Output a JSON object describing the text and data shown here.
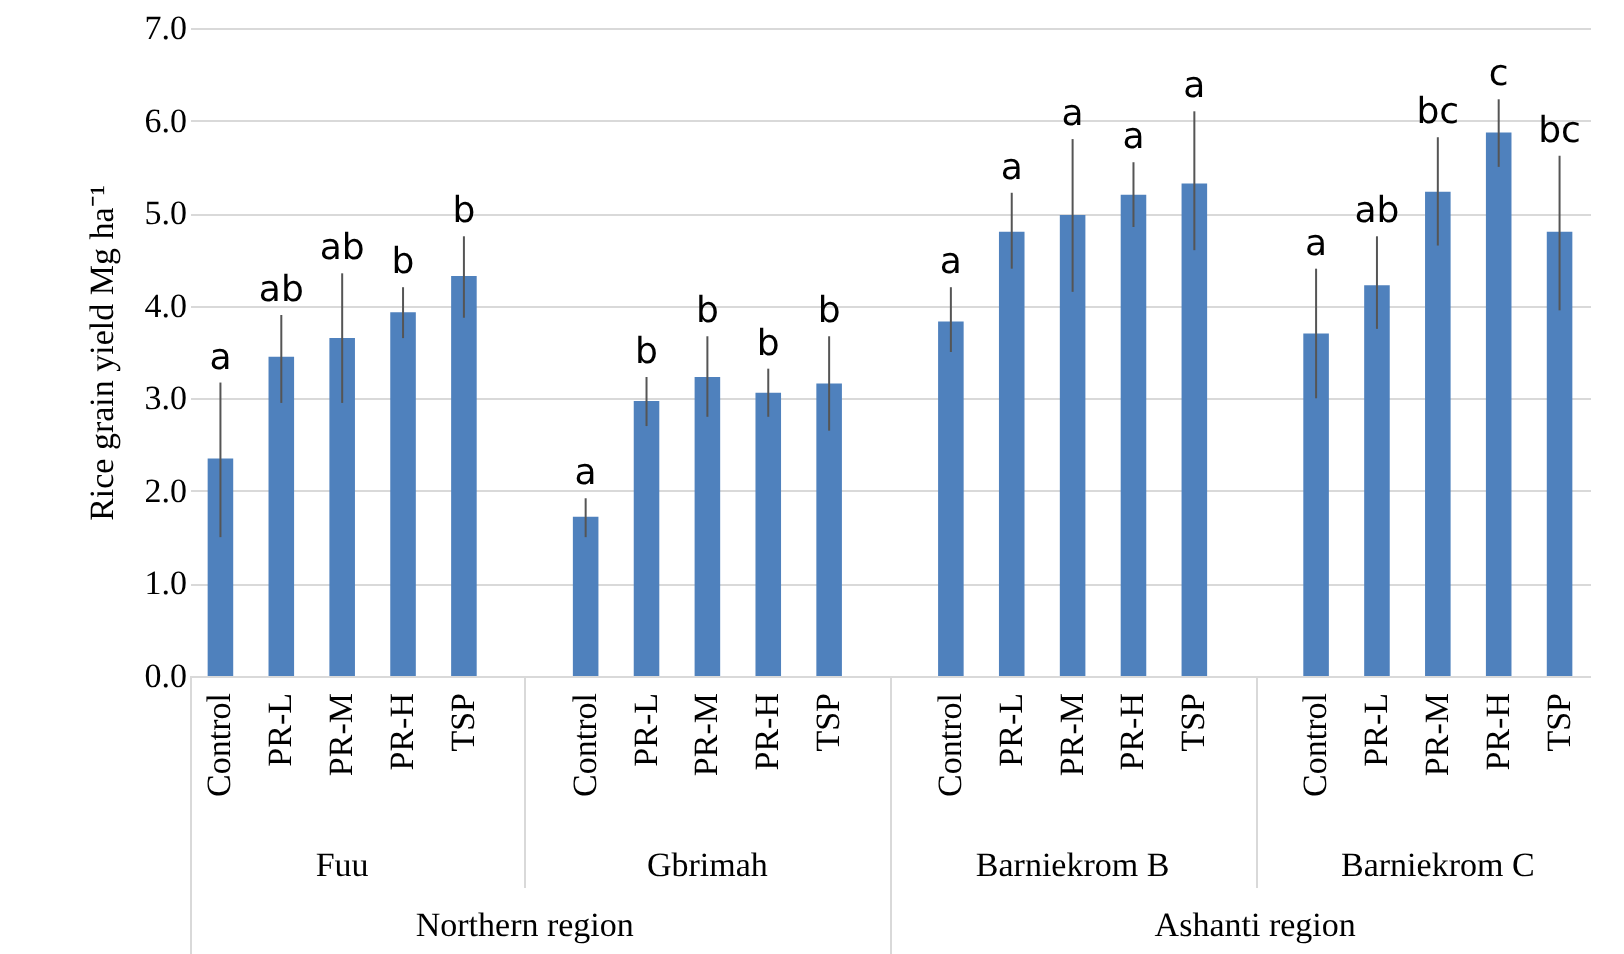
{
  "chart_data": {
    "type": "bar",
    "ylabel": "Rice grain yield  Mg ha⁻¹",
    "categories": [
      "Control",
      "PR-L",
      "PR-M",
      "PR-H",
      "TSP",
      null,
      "Control",
      "PR-L",
      "PR-M",
      "PR-H",
      "TSP",
      null,
      "Control",
      "PR-L",
      "PR-M",
      "PR-H",
      "TSP",
      null,
      "Control",
      "PR-L",
      "PR-M",
      "PR-H",
      "TSP"
    ],
    "series": [
      {
        "color": "#4f81bd",
        "values": [
          2.35,
          3.45,
          3.65,
          3.93,
          4.32,
          null,
          1.72,
          2.97,
          3.23,
          3.06,
          3.16,
          null,
          3.83,
          4.8,
          4.98,
          5.2,
          5.32,
          null,
          3.7,
          4.22,
          5.23,
          5.87,
          4.8
        ],
        "errors": [
          [
            1.5,
            3.17
          ],
          [
            2.95,
            3.9
          ],
          [
            2.95,
            4.35
          ],
          [
            3.65,
            4.2
          ],
          [
            3.87,
            4.75
          ],
          null,
          [
            1.5,
            1.92
          ],
          [
            2.7,
            3.23
          ],
          [
            2.8,
            3.67
          ],
          [
            2.8,
            3.32
          ],
          [
            2.65,
            3.67
          ],
          null,
          [
            3.5,
            4.2
          ],
          [
            4.4,
            5.22
          ],
          [
            4.15,
            5.8
          ],
          [
            4.85,
            5.55
          ],
          [
            4.6,
            6.1
          ],
          null,
          [
            3.0,
            4.4
          ],
          [
            3.75,
            4.75
          ],
          [
            4.65,
            5.82
          ],
          [
            5.5,
            6.23
          ],
          [
            3.95,
            5.62
          ]
        ],
        "value_labels": [
          "a",
          "ab",
          "ab",
          "b",
          "b",
          null,
          "a",
          "b",
          "b",
          "b",
          "b",
          null,
          "a",
          "a",
          "a",
          "a",
          "a",
          null,
          "a",
          "ab",
          "bc",
          "c",
          "bc"
        ]
      }
    ],
    "ylim": [
      0,
      7
    ],
    "yticks": [
      {
        "value": 0,
        "label": "0.0"
      },
      {
        "value": 1,
        "label": "1.0"
      },
      {
        "value": 2,
        "label": "2.0"
      },
      {
        "value": 3,
        "label": "3.0"
      },
      {
        "value": 4,
        "label": "4.0"
      },
      {
        "value": 5,
        "label": "5.0"
      },
      {
        "value": 6,
        "label": "6.0"
      },
      {
        "value": 7,
        "label": "7.0"
      }
    ],
    "grid": "y",
    "annotations": [
      "Fuu",
      "Gbrimah",
      "Barniekrom B",
      "Barniekrom C",
      "Northern region",
      "Ashanti region"
    ]
  }
}
